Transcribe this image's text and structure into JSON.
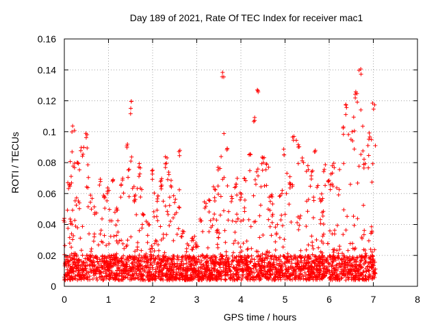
{
  "chart_data": {
    "type": "scatter",
    "title": "Day 189 of 2021, Rate Of TEC Index for receiver mac1",
    "xlabel": "GPS time / hours",
    "ylabel": "ROTI / TECUs",
    "xlim": [
      0,
      8
    ],
    "ylim": [
      0,
      0.16
    ],
    "xticks": [
      "0",
      "1",
      "2",
      "3",
      "4",
      "5",
      "6",
      "7",
      "8"
    ],
    "yticks": [
      "0",
      "0.02",
      "0.04",
      "0.06",
      "0.08",
      "0.1",
      "0.12",
      "0.14",
      "0.16"
    ],
    "grid": true,
    "marker": "+",
    "color": "#ff0000",
    "series": [
      {
        "name": "ROTI",
        "x_range": [
          0,
          7.05
        ],
        "envelope": [
          [
            0.0,
            0.045
          ],
          [
            0.1,
            0.07
          ],
          [
            0.2,
            0.104
          ],
          [
            0.3,
            0.08
          ],
          [
            0.4,
            0.09
          ],
          [
            0.5,
            0.099
          ],
          [
            0.6,
            0.06
          ],
          [
            0.7,
            0.05
          ],
          [
            0.8,
            0.07
          ],
          [
            0.9,
            0.06
          ],
          [
            1.0,
            0.065
          ],
          [
            1.1,
            0.07
          ],
          [
            1.2,
            0.055
          ],
          [
            1.3,
            0.07
          ],
          [
            1.4,
            0.095
          ],
          [
            1.5,
            0.121
          ],
          [
            1.6,
            0.06
          ],
          [
            1.7,
            0.08
          ],
          [
            1.8,
            0.05
          ],
          [
            1.9,
            0.045
          ],
          [
            2.0,
            0.076
          ],
          [
            2.1,
            0.06
          ],
          [
            2.2,
            0.07
          ],
          [
            2.3,
            0.084
          ],
          [
            2.4,
            0.07
          ],
          [
            2.5,
            0.06
          ],
          [
            2.6,
            0.089
          ],
          [
            2.7,
            0.04
          ],
          [
            2.8,
            0.03
          ],
          [
            2.9,
            0.035
          ],
          [
            3.0,
            0.03
          ],
          [
            3.1,
            0.045
          ],
          [
            3.2,
            0.055
          ],
          [
            3.3,
            0.06
          ],
          [
            3.4,
            0.065
          ],
          [
            3.5,
            0.08
          ],
          [
            3.6,
            0.141
          ],
          [
            3.7,
            0.09
          ],
          [
            3.8,
            0.06
          ],
          [
            3.9,
            0.07
          ],
          [
            4.0,
            0.06
          ],
          [
            4.1,
            0.07
          ],
          [
            4.2,
            0.09
          ],
          [
            4.3,
            0.11
          ],
          [
            4.4,
            0.129
          ],
          [
            4.5,
            0.085
          ],
          [
            4.6,
            0.08
          ],
          [
            4.7,
            0.06
          ],
          [
            4.8,
            0.04
          ],
          [
            4.9,
            0.06
          ],
          [
            5.0,
            0.09
          ],
          [
            5.1,
            0.07
          ],
          [
            5.2,
            0.1
          ],
          [
            5.3,
            0.095
          ],
          [
            5.4,
            0.085
          ],
          [
            5.5,
            0.08
          ],
          [
            5.6,
            0.075
          ],
          [
            5.7,
            0.09
          ],
          [
            5.8,
            0.06
          ],
          [
            5.9,
            0.08
          ],
          [
            6.0,
            0.07
          ],
          [
            6.1,
            0.08
          ],
          [
            6.2,
            0.065
          ],
          [
            6.3,
            0.104
          ],
          [
            6.4,
            0.12
          ],
          [
            6.5,
            0.1
          ],
          [
            6.6,
            0.126
          ],
          [
            6.7,
            0.142
          ],
          [
            6.8,
            0.08
          ],
          [
            6.9,
            0.1
          ],
          [
            7.0,
            0.12
          ]
        ],
        "baseline": [
          0.004,
          0.02
        ]
      }
    ]
  }
}
